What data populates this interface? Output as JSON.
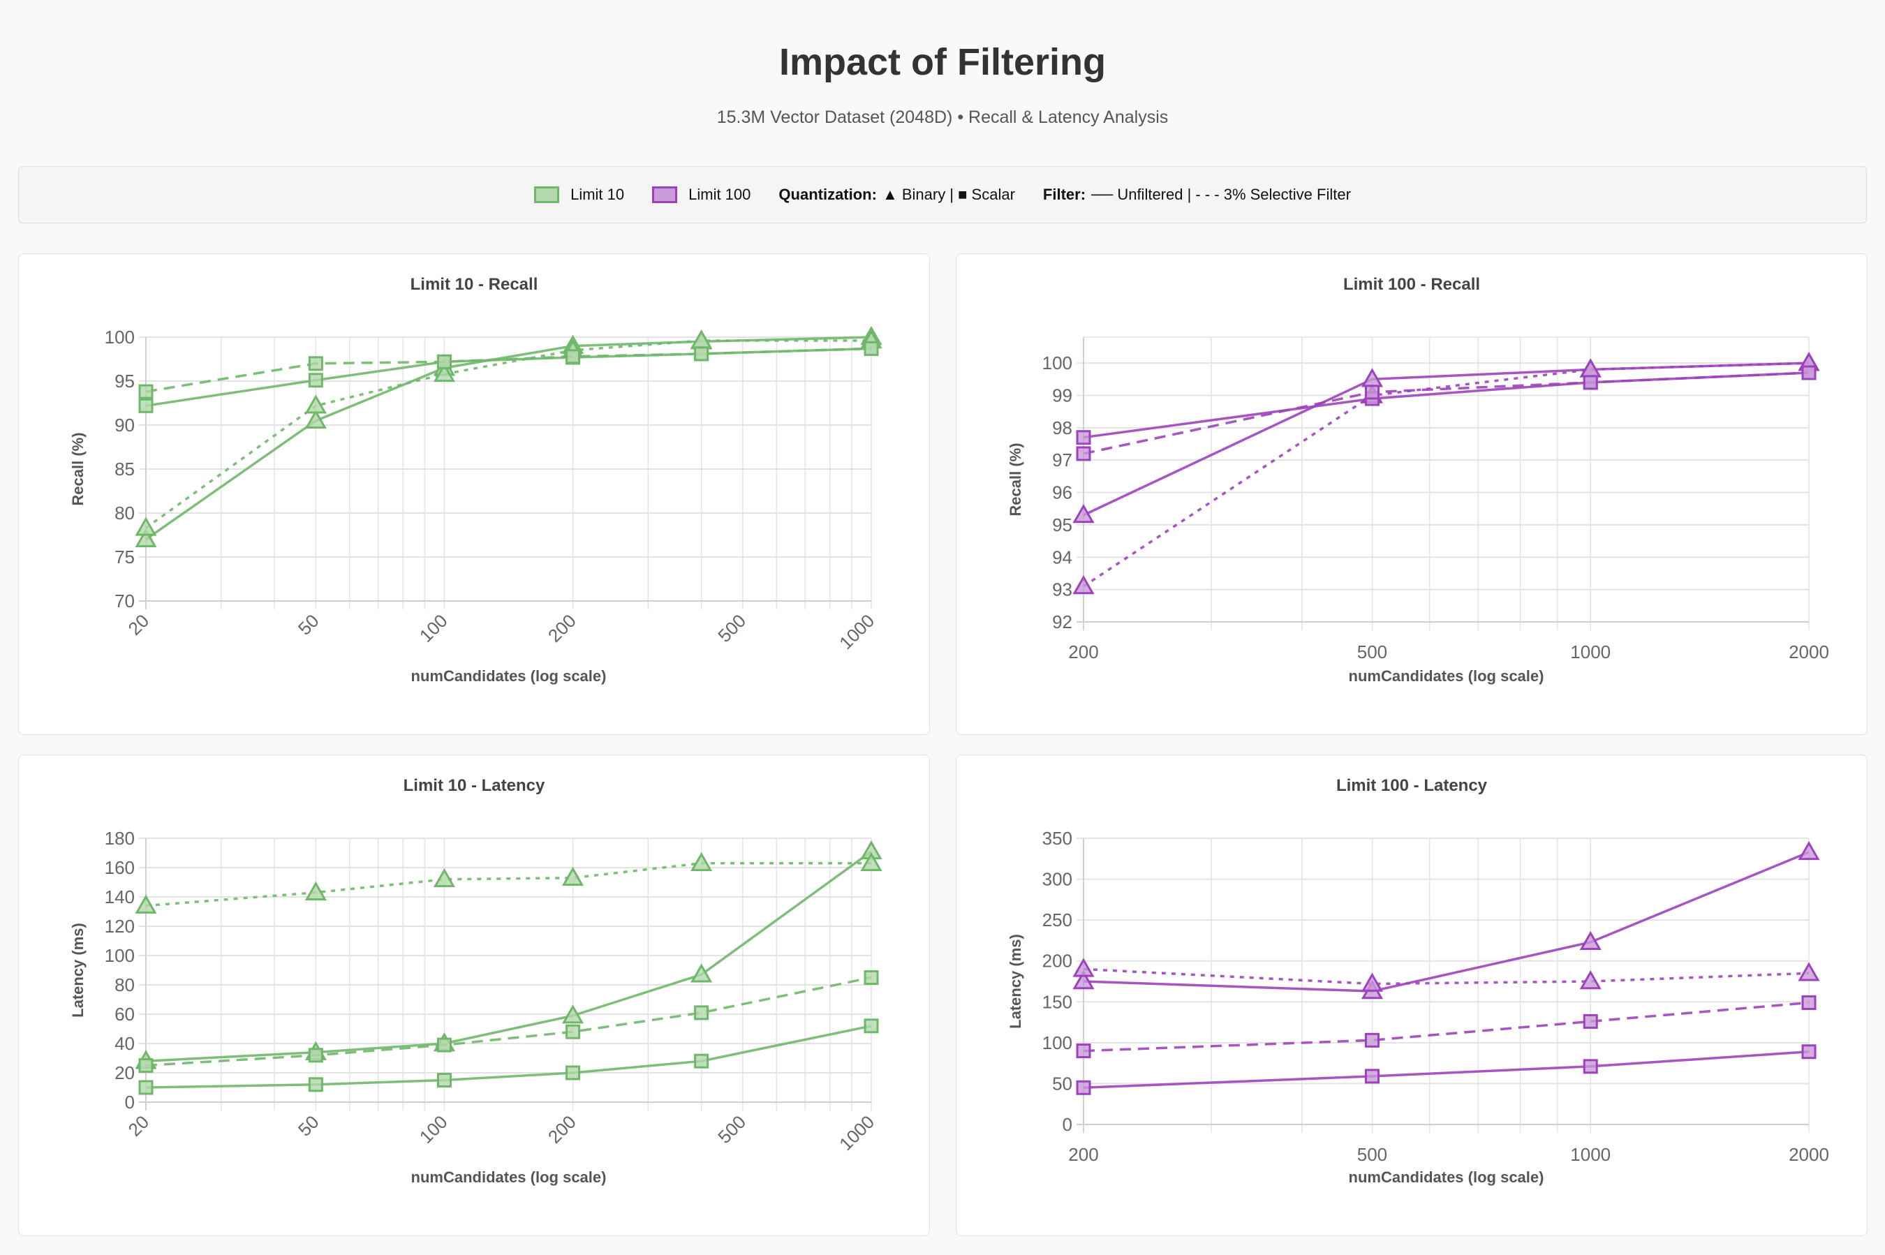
{
  "title": "Impact of Filtering",
  "subtitle": "15.3M Vector Dataset (2048D) • Recall & Latency Analysis",
  "legend": {
    "limit10": "Limit 10",
    "limit100": "Limit 100",
    "quant_label": "Quantization:",
    "quant_text": "▲ Binary | ■ Scalar",
    "filter_label": "Filter:",
    "filter_text": "── Unfiltered | - - - 3% Selective Filter"
  },
  "colors": {
    "limit10": "#6fb86a",
    "limit10_fill": "#b3d8ab",
    "limit100": "#9c42bd",
    "limit100_fill": "#c99ad7"
  },
  "chart_data": [
    {
      "type": "line",
      "title": "Limit 10 - Recall",
      "xlabel": "numCandidates (log scale)",
      "ylabel": "Recall (%)",
      "xscale": "log",
      "xlim": [
        20,
        1000
      ],
      "xticks": [
        20,
        50,
        100,
        200,
        500,
        1000
      ],
      "xticks_rotated": true,
      "ylim": [
        70,
        100
      ],
      "yticks": [
        70,
        75,
        80,
        85,
        90,
        95,
        100
      ],
      "grid": true,
      "color": "limit10",
      "x": [
        20,
        50,
        100,
        200,
        400,
        1000
      ],
      "series": [
        {
          "quantization": "binary",
          "filter": "unfiltered",
          "values": [
            77,
            90.5,
            96.5,
            99,
            99.5,
            100
          ]
        },
        {
          "quantization": "binary",
          "filter": "filtered",
          "values": [
            78.3,
            92.2,
            95.8,
            98.5,
            99.6,
            99.6
          ]
        },
        {
          "quantization": "scalar",
          "filter": "unfiltered",
          "values": [
            92.2,
            95.1,
            97.2,
            97.7,
            98.1,
            98.7
          ]
        },
        {
          "quantization": "scalar",
          "filter": "filtered",
          "values": [
            93.8,
            97,
            97.2,
            97.8,
            98.1,
            98.7
          ]
        }
      ]
    },
    {
      "type": "line",
      "title": "Limit 100 - Recall",
      "xlabel": "numCandidates (log scale)",
      "ylabel": "Recall (%)",
      "xscale": "log",
      "xlim": [
        200,
        2000
      ],
      "xticks": [
        200,
        500,
        1000,
        2000
      ],
      "xticks_rotated": false,
      "ylim": [
        92,
        100.8
      ],
      "yticks": [
        92,
        93,
        94,
        95,
        96,
        97,
        98,
        99,
        100
      ],
      "grid": true,
      "color": "limit100",
      "x": [
        200,
        500,
        1000,
        2000
      ],
      "series": [
        {
          "quantization": "binary",
          "filter": "unfiltered",
          "values": [
            95.3,
            99.5,
            99.8,
            100
          ]
        },
        {
          "quantization": "binary",
          "filter": "filtered",
          "values": [
            93.1,
            99.0,
            99.8,
            100
          ]
        },
        {
          "quantization": "scalar",
          "filter": "unfiltered",
          "values": [
            97.7,
            98.9,
            99.4,
            99.7
          ]
        },
        {
          "quantization": "scalar",
          "filter": "filtered",
          "values": [
            97.2,
            99.1,
            99.4,
            99.7
          ]
        }
      ]
    },
    {
      "type": "line",
      "title": "Limit 10 - Latency",
      "xlabel": "numCandidates (log scale)",
      "ylabel": "Latency (ms)",
      "xscale": "log",
      "xlim": [
        20,
        1000
      ],
      "xticks": [
        20,
        50,
        100,
        200,
        500,
        1000
      ],
      "xticks_rotated": true,
      "ylim": [
        0,
        180
      ],
      "yticks": [
        0,
        20,
        40,
        60,
        80,
        100,
        120,
        140,
        160,
        180
      ],
      "grid": true,
      "color": "limit10",
      "x": [
        20,
        50,
        100,
        200,
        400,
        1000
      ],
      "series": [
        {
          "quantization": "binary",
          "filter": "unfiltered",
          "values": [
            28,
            34,
            40,
            59,
            87,
            171
          ]
        },
        {
          "quantization": "binary",
          "filter": "filtered",
          "values": [
            134,
            143,
            152,
            153,
            163,
            163
          ]
        },
        {
          "quantization": "scalar",
          "filter": "unfiltered",
          "values": [
            10,
            12,
            15,
            20,
            28,
            52
          ]
        },
        {
          "quantization": "scalar",
          "filter": "filtered",
          "values": [
            25,
            32,
            39,
            48,
            61,
            85
          ]
        }
      ]
    },
    {
      "type": "line",
      "title": "Limit 100 - Latency",
      "xlabel": "numCandidates (log scale)",
      "ylabel": "Latency (ms)",
      "xscale": "log",
      "xlim": [
        200,
        2000
      ],
      "xticks": [
        200,
        500,
        1000,
        2000
      ],
      "xticks_rotated": false,
      "ylim": [
        0,
        350
      ],
      "yticks": [
        0,
        50,
        100,
        150,
        200,
        250,
        300,
        350
      ],
      "grid": true,
      "color": "limit100",
      "x": [
        200,
        500,
        1000,
        2000
      ],
      "series": [
        {
          "quantization": "binary",
          "filter": "unfiltered",
          "values": [
            175,
            163,
            223,
            333
          ]
        },
        {
          "quantization": "binary",
          "filter": "filtered",
          "values": [
            190,
            172,
            175,
            185
          ]
        },
        {
          "quantization": "scalar",
          "filter": "unfiltered",
          "values": [
            45,
            59,
            71,
            89
          ]
        },
        {
          "quantization": "scalar",
          "filter": "filtered",
          "values": [
            90,
            103,
            126,
            149
          ]
        }
      ]
    }
  ]
}
